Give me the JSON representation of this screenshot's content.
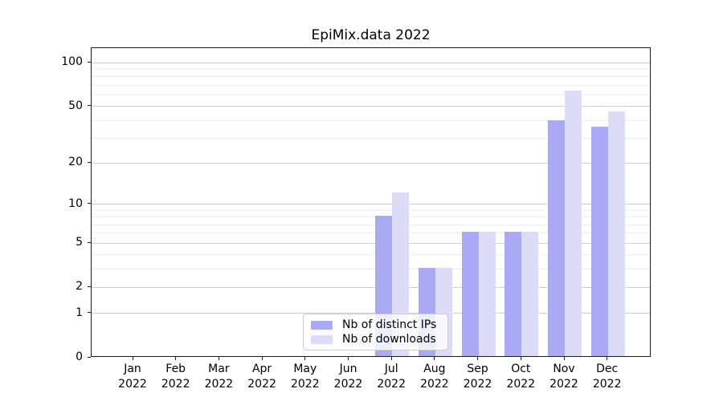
{
  "figure_title": "EpiMix.data 2022",
  "chart_data": {
    "type": "bar",
    "title": "EpiMix.data 2022",
    "categories": [
      "Jan",
      "Feb",
      "Mar",
      "Apr",
      "May",
      "Jun",
      "Jul",
      "Aug",
      "Sep",
      "Oct",
      "Nov",
      "Dec"
    ],
    "year_label": "2022",
    "series": [
      {
        "name": "Nb of distinct IPs",
        "color": "#a9a9f4",
        "values": [
          0,
          0,
          0,
          0,
          0,
          0,
          8,
          3,
          6,
          6,
          39,
          35
        ]
      },
      {
        "name": "Nb of downloads",
        "color": "#dcdcf9",
        "values": [
          0,
          0,
          0,
          0,
          0,
          0,
          12,
          3,
          6,
          6,
          63,
          45
        ]
      }
    ],
    "xlabel": "",
    "ylabel": "",
    "y_scale": "log1p",
    "y_ticks_major": [
      0,
      1,
      2,
      5,
      10,
      20,
      50,
      100
    ],
    "y_ticks_minor": [
      3,
      4,
      6,
      7,
      8,
      9,
      30,
      40,
      60,
      70,
      80,
      90
    ],
    "ylim": [
      0,
      126
    ],
    "grid": "horizontal",
    "legend_position": "lower center, inside axes",
    "colors": {
      "grid_minor": "#ededed",
      "grid_major": "#cfcfcf",
      "axis": "#1a1a1a",
      "legend_border": "#cccccc"
    }
  }
}
